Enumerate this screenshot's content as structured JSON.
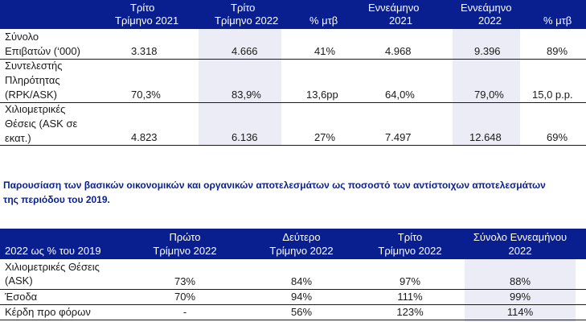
{
  "table1": {
    "headers": [
      {
        "line1": "Τρίτο",
        "line2": "Τρίμηνο 2021"
      },
      {
        "line1": "Τρίτο",
        "line2": "Τρίμηνο 2022"
      },
      {
        "line1": "",
        "line2": "% μτβ"
      },
      {
        "line1": "Εννεάμηνο",
        "line2": "2021"
      },
      {
        "line1": "Εννεάμηνο",
        "line2": "2022"
      },
      {
        "line1": "",
        "line2": "% μτβ"
      }
    ],
    "rows": [
      {
        "label": [
          "Σύνολο",
          "Επιβατών (‘000)"
        ],
        "values": [
          "3.318",
          "4.666",
          "41%",
          "4.968",
          "9.396",
          "89%"
        ]
      },
      {
        "label": [
          "Συντελεστής",
          "Πληρότητας",
          "(RPK/ASK)"
        ],
        "values": [
          "70,3%",
          "83,9%",
          "13,6pp",
          "64,0%",
          "79,0%",
          "15,0 p.p."
        ]
      },
      {
        "label": [
          "Χιλιομετρικές",
          "Θέσεις (ASK σε",
          "εκατ.)"
        ],
        "values": [
          "4.823",
          "6.136",
          "27%",
          "7.497",
          "12.648",
          "69%"
        ]
      }
    ]
  },
  "paragraph": {
    "line1": "Παρουσίαση των βασικών οικονομικών και οργανικών αποτελεσμάτων ως ποσοστό των αντίστοιχων αποτελεσμάτων",
    "line2": "της περιόδου του 2019."
  },
  "table2": {
    "headers": [
      {
        "line1": "",
        "line2": "2022 ως % του 2019"
      },
      {
        "line1": "Πρώτο",
        "line2": "Τρίμηνο 2022"
      },
      {
        "line1": "Δεύτερο",
        "line2": "Τρίμηνο 2022"
      },
      {
        "line1": "Τρίτο",
        "line2": "Τρίμηνο 2022"
      },
      {
        "line1": "Σύνολο Εννεαμήνου",
        "line2": "2022"
      }
    ],
    "rows": [
      {
        "label": [
          "Χιλιομετρικές Θέσεις",
          "(ASK)"
        ],
        "values": [
          "73%",
          "84%",
          "97%",
          "88%"
        ]
      },
      {
        "label": [
          "Έσοδα"
        ],
        "values": [
          "70%",
          "94%",
          "111%",
          "99%"
        ]
      },
      {
        "label": [
          "Κέρδη προ φόρων"
        ],
        "values": [
          "-",
          "56%",
          "123%",
          "114%"
        ]
      }
    ]
  },
  "colors": {
    "header_bg": "#0a1f8f",
    "shade": "#ececf7",
    "paragraph_text": "#0a1f8f"
  }
}
